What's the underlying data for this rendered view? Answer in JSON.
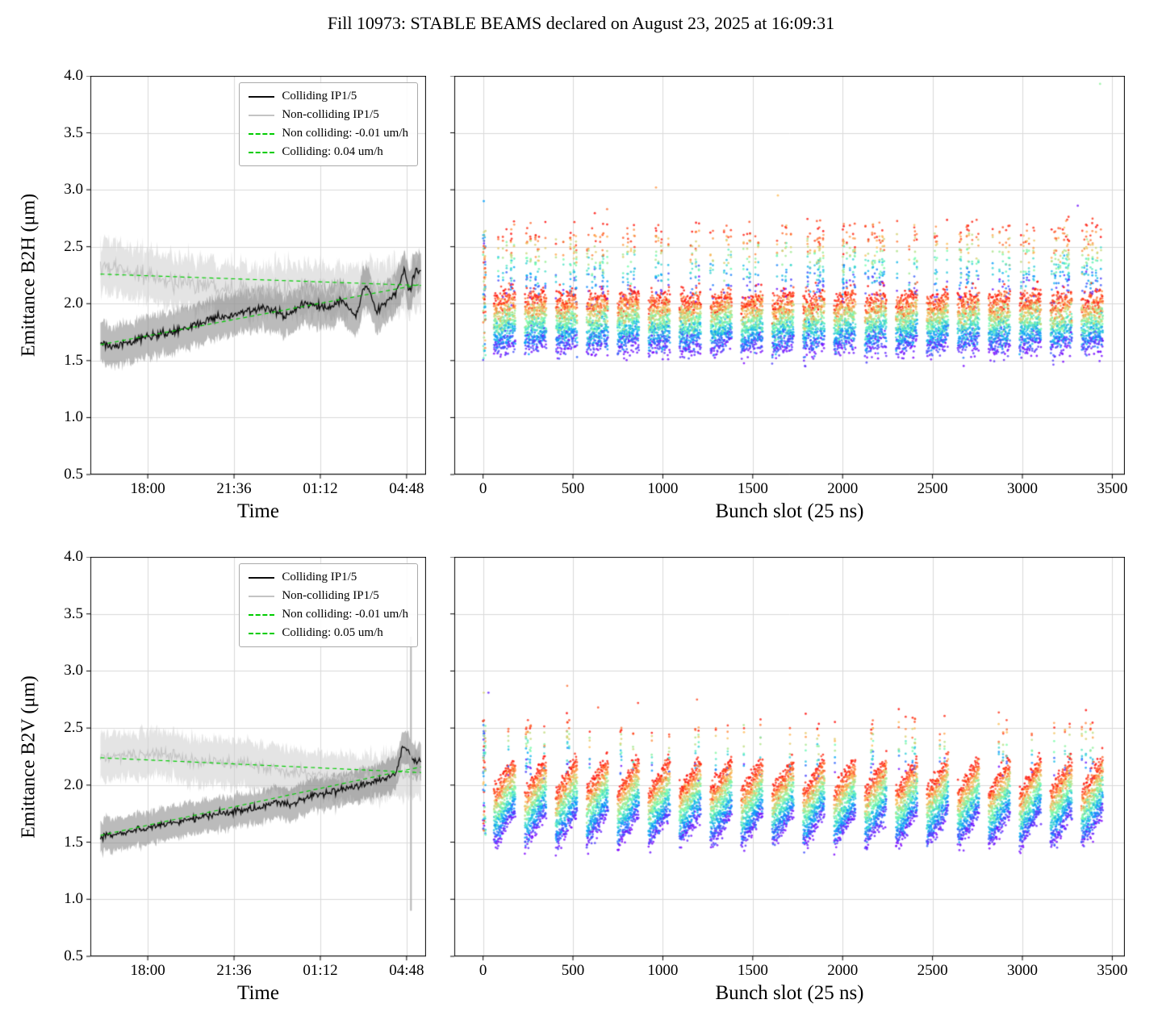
{
  "title": "Fill 10973: STABLE BEAMS declared on August 23, 2025 at 16:09:31",
  "colors": {
    "colliding_line": "#0a0a0a",
    "colliding_band": "rgba(120,120,120,0.50)",
    "noncolliding_line": "#c4c4c4",
    "noncolliding_band": "rgba(206,206,206,0.55)",
    "fit_line": "#00cc00",
    "grid": "#d9d9d9"
  },
  "chart_data": [
    {
      "type": "line",
      "id": "b2h-time",
      "ylabel": "Emittance B2H (μm)",
      "xlabel": "Time",
      "ylim": [
        0.5,
        4.0
      ],
      "yticks": [
        0.5,
        1.0,
        1.5,
        2.0,
        2.5,
        3.0,
        3.5,
        4.0
      ],
      "xticks": [
        {
          "pos": 0.171,
          "label": "18:00"
        },
        {
          "pos": 0.428,
          "label": "21:36"
        },
        {
          "pos": 0.685,
          "label": "01:12"
        },
        {
          "pos": 0.942,
          "label": "04:48"
        }
      ],
      "domain": [
        0.03,
        0.985
      ],
      "series": [
        {
          "name": "Colliding IP1/5",
          "role": "colliding",
          "noise": 0.045,
          "band": 0.18,
          "keys": [
            [
              0.03,
              1.65
            ],
            [
              0.08,
              1.62
            ],
            [
              0.15,
              1.7
            ],
            [
              0.22,
              1.73
            ],
            [
              0.3,
              1.8
            ],
            [
              0.38,
              1.88
            ],
            [
              0.45,
              1.92
            ],
            [
              0.52,
              1.97
            ],
            [
              0.58,
              1.9
            ],
            [
              0.64,
              2.0
            ],
            [
              0.7,
              1.96
            ],
            [
              0.75,
              2.03
            ],
            [
              0.79,
              1.88
            ],
            [
              0.82,
              2.18
            ],
            [
              0.85,
              1.95
            ],
            [
              0.88,
              2.0
            ],
            [
              0.91,
              2.08
            ],
            [
              0.935,
              2.28
            ],
            [
              0.95,
              2.1
            ],
            [
              0.97,
              2.3
            ],
            [
              0.985,
              2.28
            ]
          ]
        },
        {
          "name": "Non-colliding IP1/5",
          "role": "noncolliding",
          "noise": 0.1,
          "band": 0.22,
          "keys": [
            [
              0.03,
              2.32
            ],
            [
              0.08,
              2.3
            ],
            [
              0.15,
              2.26
            ],
            [
              0.22,
              2.2
            ],
            [
              0.3,
              2.18
            ],
            [
              0.4,
              2.15
            ],
            [
              0.5,
              2.12
            ],
            [
              0.6,
              2.1
            ],
            [
              0.7,
              2.13
            ],
            [
              0.8,
              2.1
            ],
            [
              0.9,
              2.15
            ],
            [
              0.985,
              2.18
            ]
          ]
        }
      ],
      "fits": [
        {
          "label": "Non colliding: -0.01 um/h",
          "slope_um_per_h": -0.01,
          "y": [
            2.26,
            2.16
          ]
        },
        {
          "label": "Colliding: 0.04 um/h",
          "slope_um_per_h": 0.04,
          "y": [
            1.64,
            2.17
          ]
        }
      ],
      "legend": [
        {
          "label": "Colliding IP1/5",
          "style": "colliding"
        },
        {
          "label": "Non-colliding IP1/5",
          "style": "noncolliding"
        },
        {
          "label": "Non colliding: -0.01 um/h",
          "style": "fit"
        },
        {
          "label": "Colliding: 0.04 um/h",
          "style": "fit"
        }
      ]
    },
    {
      "type": "scatter",
      "id": "b2h-bunch",
      "xlabel": "Bunch slot (25 ns)",
      "xlim": [
        -160,
        3570
      ],
      "xticks": [
        0,
        500,
        1000,
        1500,
        2000,
        2500,
        3000,
        3500
      ],
      "ylim": [
        0.5,
        4.0
      ],
      "yticks": [
        0.5,
        1.0,
        1.5,
        2.0,
        2.5,
        3.0,
        3.5,
        4.0
      ],
      "colormap": "rainbow",
      "color_encodes": "time in fill (purple/blue = early, red/orange = late)",
      "pilot": {
        "slot_range": [
          0,
          14
        ],
        "count": 80,
        "y_range": [
          1.5,
          2.65
        ],
        "extra_top": [
          2.9
        ]
      },
      "trains": {
        "count": 20,
        "first_start": 60,
        "spacing": 172,
        "length": 120,
        "bunch_step": 2,
        "samples_per_bunch": 8
      },
      "model": {
        "base": 1.58,
        "ramp": 0.06,
        "growth": 0.45,
        "bunch_sigma": 0.08,
        "noise_sigma": 0.09,
        "high_frac": 0.12,
        "high_base": 2.1,
        "high_growth": 0.55,
        "high_sigma": 0.15
      },
      "outliers": [
        [
          3432,
          3.93,
          0.55
        ],
        [
          3308,
          2.86,
          0.03
        ],
        [
          962,
          3.02,
          0.8
        ],
        [
          690,
          2.83,
          0.85
        ],
        [
          1640,
          2.95,
          0.75
        ]
      ]
    },
    {
      "type": "line",
      "id": "b2v-time",
      "ylabel": "Emittance B2V (μm)",
      "xlabel": "Time",
      "ylim": [
        0.5,
        4.0
      ],
      "yticks": [
        0.5,
        1.0,
        1.5,
        2.0,
        2.5,
        3.0,
        3.5,
        4.0
      ],
      "xticks": [
        {
          "pos": 0.171,
          "label": "18:00"
        },
        {
          "pos": 0.428,
          "label": "21:36"
        },
        {
          "pos": 0.685,
          "label": "01:12"
        },
        {
          "pos": 0.942,
          "label": "04:48"
        }
      ],
      "domain": [
        0.03,
        0.985
      ],
      "series": [
        {
          "name": "Colliding IP1/5",
          "role": "colliding",
          "noise": 0.035,
          "band": 0.14,
          "keys": [
            [
              0.03,
              1.55
            ],
            [
              0.1,
              1.58
            ],
            [
              0.18,
              1.63
            ],
            [
              0.26,
              1.68
            ],
            [
              0.34,
              1.73
            ],
            [
              0.42,
              1.77
            ],
            [
              0.5,
              1.8
            ],
            [
              0.55,
              1.85
            ],
            [
              0.6,
              1.83
            ],
            [
              0.65,
              1.9
            ],
            [
              0.7,
              1.93
            ],
            [
              0.75,
              1.97
            ],
            [
              0.8,
              2.0
            ],
            [
              0.85,
              2.03
            ],
            [
              0.88,
              2.07
            ],
            [
              0.91,
              2.1
            ],
            [
              0.93,
              2.35
            ],
            [
              0.95,
              2.28
            ],
            [
              0.97,
              2.2
            ],
            [
              0.985,
              2.22
            ]
          ]
        },
        {
          "name": "Non-colliding IP1/5",
          "role": "noncolliding",
          "noise": 0.06,
          "band": 0.2,
          "keys": [
            [
              0.03,
              2.22
            ],
            [
              0.1,
              2.26
            ],
            [
              0.2,
              2.27
            ],
            [
              0.3,
              2.22
            ],
            [
              0.4,
              2.2
            ],
            [
              0.5,
              2.17
            ],
            [
              0.6,
              2.12
            ],
            [
              0.7,
              2.08
            ],
            [
              0.8,
              2.05
            ],
            [
              0.88,
              2.08
            ],
            [
              0.93,
              2.1
            ],
            [
              0.985,
              2.08
            ]
          ]
        }
      ],
      "anomaly": {
        "x": 0.955,
        "y_range": [
          0.9,
          3.3
        ],
        "color": "#b5b5b5"
      },
      "fits": [
        {
          "label": "Non colliding: -0.01 um/h",
          "slope_um_per_h": -0.01,
          "y": [
            2.24,
            2.11
          ]
        },
        {
          "label": "Colliding: 0.05 um/h",
          "slope_um_per_h": 0.05,
          "y": [
            1.56,
            2.16
          ]
        }
      ],
      "legend": [
        {
          "label": "Colliding IP1/5",
          "style": "colliding"
        },
        {
          "label": "Non-colliding IP1/5",
          "style": "noncolliding"
        },
        {
          "label": "Non colliding: -0.01 um/h",
          "style": "fit"
        },
        {
          "label": "Colliding: 0.05 um/h",
          "style": "fit"
        }
      ]
    },
    {
      "type": "scatter",
      "id": "b2v-bunch",
      "xlabel": "Bunch slot (25 ns)",
      "xlim": [
        -160,
        3570
      ],
      "xticks": [
        0,
        500,
        1000,
        1500,
        2000,
        2500,
        3000,
        3500
      ],
      "ylim": [
        0.5,
        4.0
      ],
      "yticks": [
        0.5,
        1.0,
        1.5,
        2.0,
        2.5,
        3.0,
        3.5,
        4.0
      ],
      "colormap": "rainbow",
      "color_encodes": "time in fill (purple/blue = early, red/orange = late)",
      "pilot": {
        "slot_range": [
          0,
          14
        ],
        "count": 70,
        "y_range": [
          1.55,
          2.6
        ],
        "extra_top": [
          2.81
        ]
      },
      "trains": {
        "count": 20,
        "first_start": 60,
        "spacing": 172,
        "length": 120,
        "bunch_step": 2,
        "samples_per_bunch": 8
      },
      "model": {
        "base": 1.45,
        "ramp": 0.3,
        "growth": 0.5,
        "bunch_sigma": 0.06,
        "noise_sigma": 0.07,
        "high_frac": 0.04,
        "high_base": 2.1,
        "high_growth": 0.45,
        "high_sigma": 0.12
      },
      "outliers": [
        [
          468,
          2.87,
          0.85
        ],
        [
          640,
          2.68,
          0.9
        ],
        [
          862,
          2.72,
          0.95
        ],
        [
          1190,
          2.75,
          0.9
        ],
        [
          30,
          2.81,
          0.05
        ]
      ]
    }
  ]
}
